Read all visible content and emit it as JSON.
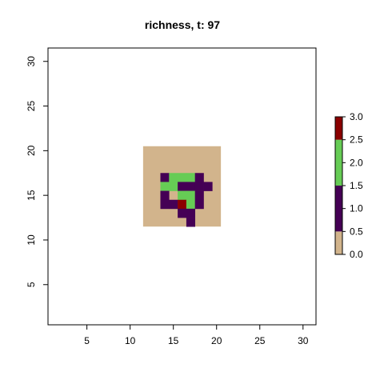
{
  "chart_data": {
    "type": "heatmap",
    "title": "richness, t: 97",
    "xlim": [
      0.5,
      31.5
    ],
    "ylim": [
      0.5,
      31.5
    ],
    "x_ticks": [
      5,
      10,
      15,
      20,
      25,
      30
    ],
    "y_ticks": [
      5,
      10,
      15,
      20,
      25,
      30
    ],
    "grid": false,
    "background_region": {
      "x": [
        12,
        20
      ],
      "y": [
        12,
        20
      ],
      "value": 0
    },
    "cells": [
      {
        "x": 14,
        "y": 17,
        "value": 1
      },
      {
        "x": 15,
        "y": 17,
        "value": 2
      },
      {
        "x": 16,
        "y": 17,
        "value": 2
      },
      {
        "x": 17,
        "y": 17,
        "value": 2
      },
      {
        "x": 18,
        "y": 17,
        "value": 1
      },
      {
        "x": 14,
        "y": 16,
        "value": 2
      },
      {
        "x": 15,
        "y": 16,
        "value": 2
      },
      {
        "x": 16,
        "y": 16,
        "value": 1
      },
      {
        "x": 17,
        "y": 16,
        "value": 1
      },
      {
        "x": 18,
        "y": 16,
        "value": 1
      },
      {
        "x": 19,
        "y": 16,
        "value": 1
      },
      {
        "x": 14,
        "y": 15,
        "value": 1
      },
      {
        "x": 16,
        "y": 15,
        "value": 2
      },
      {
        "x": 17,
        "y": 15,
        "value": 2
      },
      {
        "x": 18,
        "y": 15,
        "value": 1
      },
      {
        "x": 14,
        "y": 14,
        "value": 1
      },
      {
        "x": 15,
        "y": 14,
        "value": 1
      },
      {
        "x": 16,
        "y": 14,
        "value": 3
      },
      {
        "x": 17,
        "y": 14,
        "value": 2
      },
      {
        "x": 18,
        "y": 14,
        "value": 1
      },
      {
        "x": 16,
        "y": 13,
        "value": 1
      },
      {
        "x": 17,
        "y": 13,
        "value": 1
      },
      {
        "x": 17,
        "y": 12,
        "value": 1
      }
    ],
    "legend": {
      "placement": "right",
      "breaks": [
        0,
        0.5,
        1.5,
        2.5,
        3
      ],
      "colors": [
        "#d2b48c",
        "#450055",
        "#66cc55",
        "#8b0000"
      ],
      "tick_labels": [
        "0.0",
        "0.5",
        "1.0",
        "1.5",
        "2.0",
        "2.5",
        "3.0"
      ],
      "tick_values": [
        0,
        0.5,
        1,
        1.5,
        2,
        2.5,
        3
      ]
    }
  }
}
